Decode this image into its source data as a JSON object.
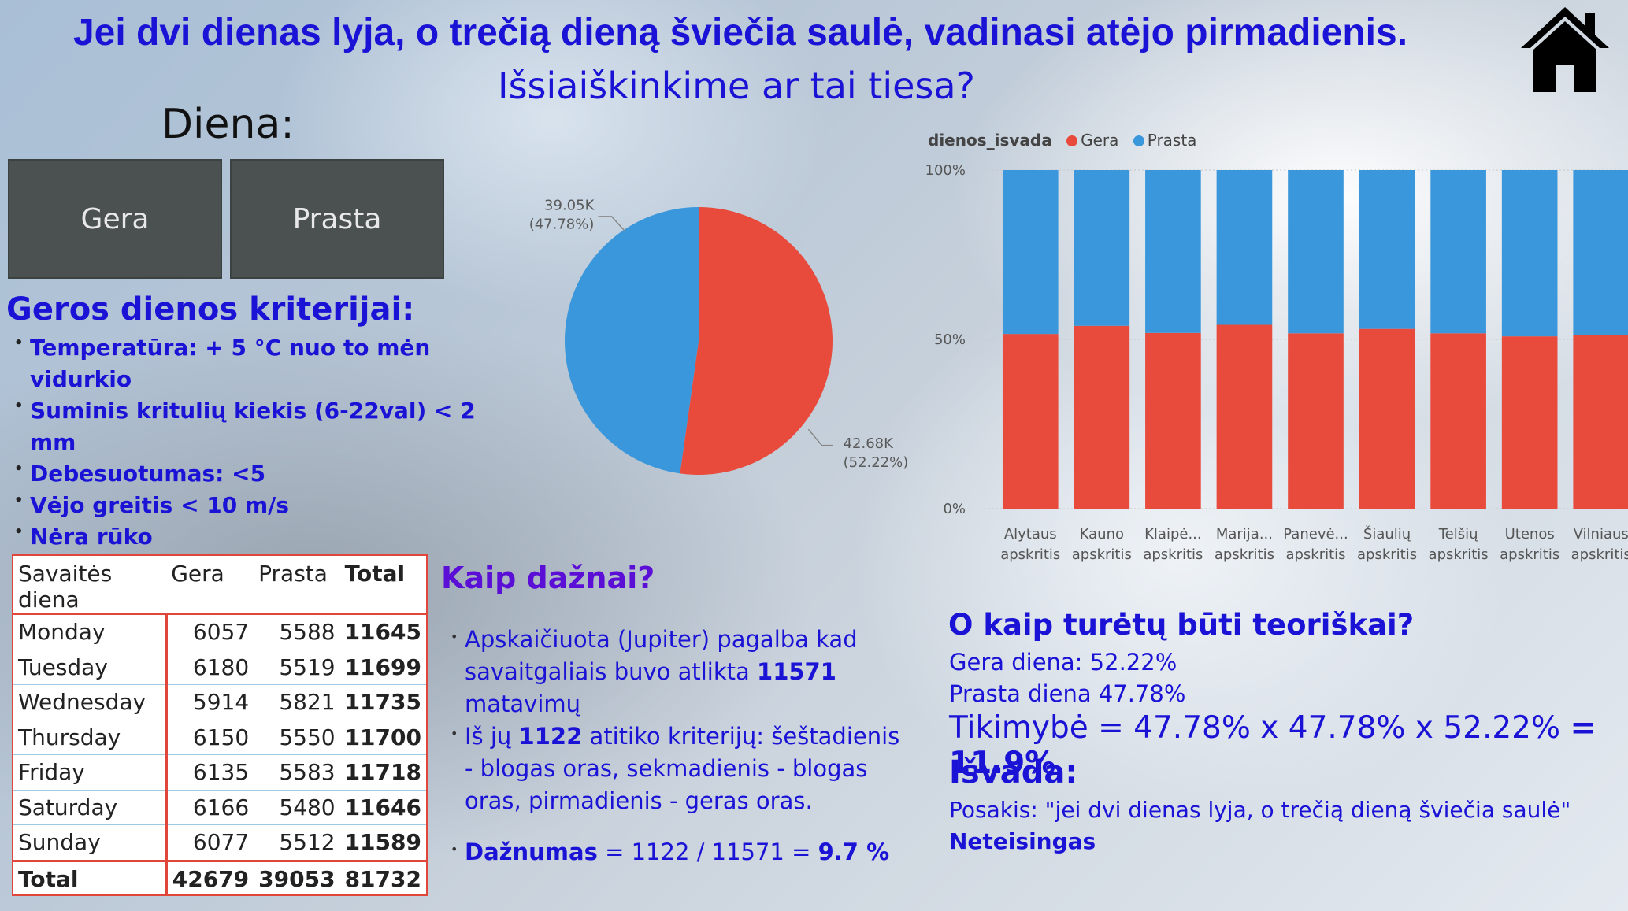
{
  "header": {
    "title": "Jei dvi dienas lyja, o trečią dieną šviečia saulė, vadinasi atėjo pirmadienis.",
    "subtitle": "Išsiaiškinkime ar tai tiesa?",
    "home_icon": "home-icon"
  },
  "slicer": {
    "label": "Diena:",
    "options": [
      "Gera",
      "Prasta"
    ]
  },
  "criteria": {
    "title": "Geros dienos kriterijai:",
    "items": [
      "Temperatūra: + 5 °C nuo to mėn vidurkio",
      "Suminis kritulių kiekis (6-22val) < 2 mm",
      "Debesuotumas: <5",
      "Vėjo greitis < 10 m/s",
      "Nėra rūko"
    ]
  },
  "table": {
    "headers": [
      "Savaitės diena",
      "Gera",
      "Prasta",
      "Total"
    ],
    "rows": [
      [
        "Monday",
        "6057",
        "5588",
        "11645"
      ],
      [
        "Tuesday",
        "6180",
        "5519",
        "11699"
      ],
      [
        "Wednesday",
        "5914",
        "5821",
        "11735"
      ],
      [
        "Thursday",
        "6150",
        "5550",
        "11700"
      ],
      [
        "Friday",
        "6135",
        "5583",
        "11718"
      ],
      [
        "Saturday",
        "6166",
        "5480",
        "11646"
      ],
      [
        "Sunday",
        "6077",
        "5512",
        "11589"
      ]
    ],
    "total": [
      "Total",
      "42679",
      "39053",
      "81732"
    ]
  },
  "kaip": {
    "title": "Kaip dažnai?",
    "p1_a": "Apskaičiuota (Jupiter) pagalba kad savaitgaliais buvo atlikta ",
    "p1_b": "11571",
    "p1_c": " matavimų",
    "p2_a": "Iš jų ",
    "p2_b": "1122",
    "p2_c": " atitiko kriterijų: šeštadienis - blogas oras, sekmadienis - blogas oras, pirmadienis - geras oras.",
    "p3_a": "Dažnumas",
    "p3_b": " = 1122 / 11571 = ",
    "p3_c": "9.7 %"
  },
  "theory": {
    "title": "O kaip turėtų būti teoriškai?",
    "line1": "Gera diena: 52.22%",
    "line2": "Prasta diena 47.78%",
    "prob_a": "Tikimybė = 47.78% x 47.78% x 52.22% ",
    "prob_b": "= 11.9%",
    "conclusion_title": "Išvada:",
    "conclusion": "Posakis: \"jei dvi dienas lyja, o trečią dieną šviečia saulė\"",
    "verdict": "Neteisingas"
  },
  "colors": {
    "gera": "#e84a3c",
    "prasta": "#3a97db",
    "heading": "#1a13d6"
  },
  "chart_data": [
    {
      "type": "pie",
      "slices": [
        {
          "label": "Gera",
          "value": 42680,
          "display": "42.68K",
          "pct": "(52.22%)"
        },
        {
          "label": "Prasta",
          "value": 39050,
          "display": "39.05K",
          "pct": "(47.78%)"
        }
      ]
    },
    {
      "type": "bar",
      "stacked": "100%",
      "legend_title": "dienos_isvada",
      "legend_position": "top-left",
      "categories": [
        [
          "Alytaus",
          "apskritis"
        ],
        [
          "Kauno",
          "apskritis"
        ],
        [
          "Klaipė...",
          "apskritis"
        ],
        [
          "Marija...",
          "apskritis"
        ],
        [
          "Panevė...",
          "apskritis"
        ],
        [
          "Šiaulių",
          "apskritis"
        ],
        [
          "Telšių",
          "apskritis"
        ],
        [
          "Utenos",
          "apskritis"
        ],
        [
          "Vilniaus",
          "apskritis"
        ]
      ],
      "series": [
        {
          "name": "Gera",
          "values": [
            51.6,
            54.0,
            51.9,
            54.3,
            51.8,
            53.1,
            51.8,
            50.9,
            51.3
          ]
        },
        {
          "name": "Prasta",
          "values": [
            48.4,
            46.0,
            48.1,
            45.7,
            48.2,
            46.9,
            48.2,
            49.1,
            48.7
          ]
        }
      ],
      "yticks": [
        "0%",
        "50%",
        "100%"
      ],
      "ylim": [
        0,
        100
      ],
      "grid": true
    }
  ]
}
